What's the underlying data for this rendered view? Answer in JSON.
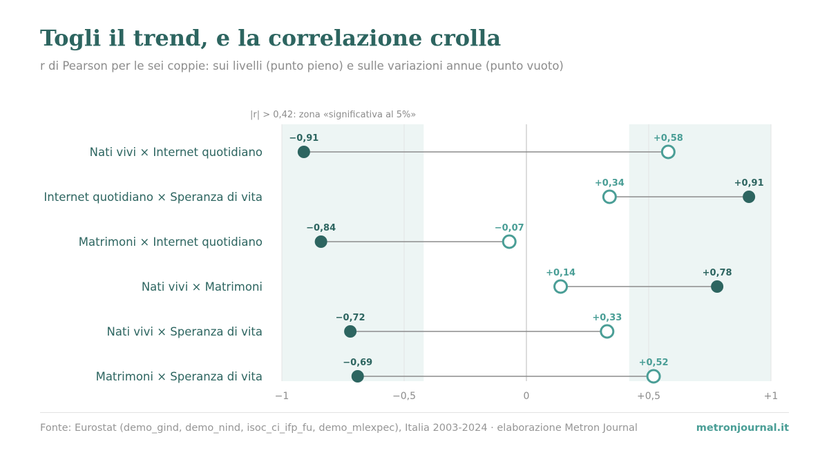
{
  "title": "Togli il trend, e la correlazione crolla",
  "subtitle": "r di Pearson per le sei coppie: sui livelli (punto pieno) e sulle variazioni annue (punto vuoto)",
  "source": "Fonte: Eurostat (demo_gind, demo_nind, isoc_ci_ifp_fu, demo_mlexpec), Italia 2003-2024 · elaborazione Metron Journal",
  "brand": "metronjournal.it",
  "colors": {
    "title": "#2d6560",
    "levels": "#2d6560",
    "changes": "#4a9e96",
    "zone": "#edf5f4",
    "connector": "#8c8c8c"
  },
  "chart_data": {
    "type": "dumbbell",
    "xlim": [
      -1,
      1
    ],
    "ticks": [
      {
        "value": -1,
        "label": "−1"
      },
      {
        "value": -0.5,
        "label": "−0,5"
      },
      {
        "value": 0,
        "label": "0"
      },
      {
        "value": 0.5,
        "label": "+0,5"
      },
      {
        "value": 1,
        "label": "+1"
      }
    ],
    "significance_threshold": 0.42,
    "significance_label": "|r| > 0,42: zona «significativa al 5%»",
    "rows": [
      {
        "pair": "Nati vivi × Internet quotidiano",
        "levels": -0.91,
        "levels_label": "−0,91",
        "changes": 0.58,
        "changes_label": "+0,58"
      },
      {
        "pair": "Internet quotidiano × Speranza di vita",
        "levels": 0.91,
        "levels_label": "+0,91",
        "changes": 0.34,
        "changes_label": "+0,34"
      },
      {
        "pair": "Matrimoni × Internet quotidiano",
        "levels": -0.84,
        "levels_label": "−0,84",
        "changes": -0.07,
        "changes_label": "−0,07"
      },
      {
        "pair": "Nati vivi × Matrimoni",
        "levels": 0.78,
        "levels_label": "+0,78",
        "changes": 0.14,
        "changes_label": "+0,14"
      },
      {
        "pair": "Nati vivi × Speranza di vita",
        "levels": -0.72,
        "levels_label": "−0,72",
        "changes": 0.33,
        "changes_label": "+0,33"
      },
      {
        "pair": "Matrimoni × Speranza di vita",
        "levels": -0.69,
        "levels_label": "−0,69",
        "changes": 0.52,
        "changes_label": "+0,52"
      }
    ]
  }
}
